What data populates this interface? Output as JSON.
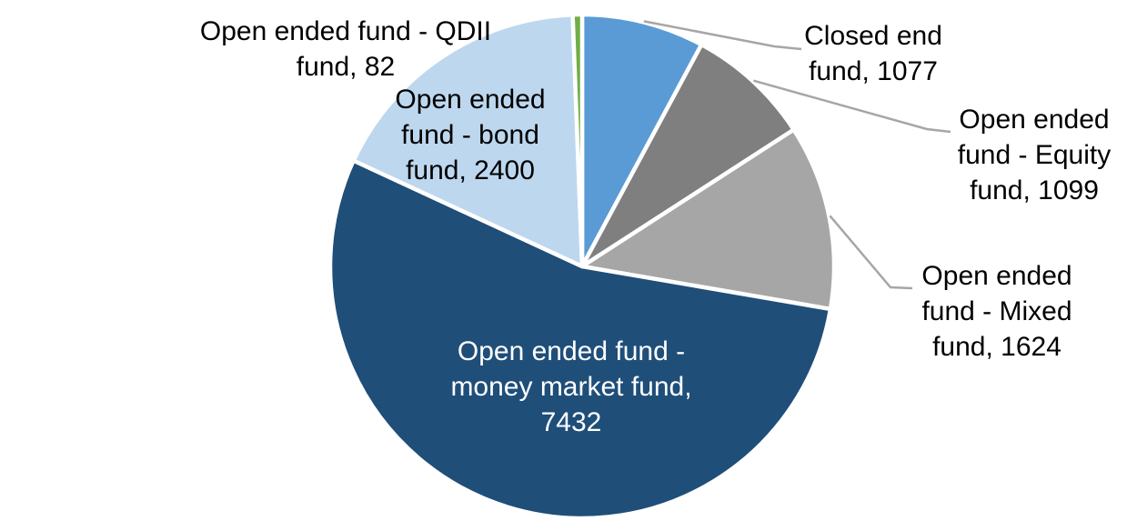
{
  "chart_data": {
    "type": "pie",
    "title": "",
    "legend": "none",
    "background_color": "#ffffff",
    "leader_line_color": "#A6A6A6",
    "separator_color": "#ffffff",
    "label_format": "name, value",
    "slices": [
      {
        "name": "Closed end fund",
        "value": 1077,
        "color": "#5B9BD5",
        "label_color": "#000000",
        "label_lines": [
          "Closed end",
          "fund, 1077"
        ]
      },
      {
        "name": "Open ended fund - Equity fund",
        "value": 1099,
        "color": "#7F7F7F",
        "label_color": "#000000",
        "label_lines": [
          "Open ended",
          "fund - Equity",
          "fund, 1099"
        ]
      },
      {
        "name": "Open ended fund - Mixed fund",
        "value": 1624,
        "color": "#A6A6A6",
        "label_color": "#000000",
        "label_lines": [
          "Open ended",
          "fund - Mixed",
          "fund, 1624"
        ]
      },
      {
        "name": "Open ended fund - money market fund",
        "value": 7432,
        "color": "#1F4E79",
        "label_color": "#FFFFFF",
        "label_lines": [
          "Open ended fund -",
          "money market fund,",
          "7432"
        ]
      },
      {
        "name": "Open ended fund - bond fund",
        "value": 2400,
        "color": "#BDD7EE",
        "label_color": "#000000",
        "label_lines": [
          "Open ended",
          "fund - bond",
          "fund, 2400"
        ]
      },
      {
        "name": "Open ended fund - QDII fund",
        "value": 82,
        "color": "#70AD47",
        "label_color": "#000000",
        "label_lines": [
          "Open ended fund - QDII",
          "fund, 82"
        ]
      }
    ]
  }
}
